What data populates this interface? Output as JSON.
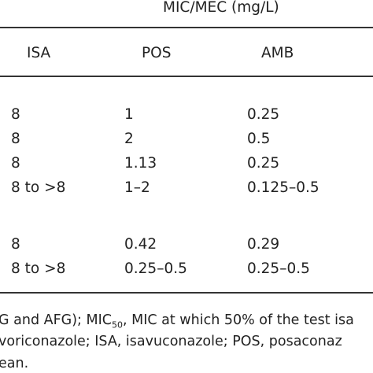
{
  "table": {
    "spanning_header": "MIC/MEC (mg/L)",
    "columns": [
      "ISA",
      "POS",
      "AMB"
    ],
    "rows": [
      [
        "8",
        "1",
        "0.25"
      ],
      [
        "8",
        "2",
        "0.5"
      ],
      [
        "8",
        "1.13",
        "0.25"
      ],
      [
        "8 to >8",
        "1–2",
        "0.125–0.5"
      ],
      [
        "8",
        "0.42",
        "0.29"
      ],
      [
        "8 to >8",
        "0.25–0.5",
        "0.25–0.5"
      ]
    ]
  },
  "footnotes": {
    "line1_a": "G and AFG); MIC",
    "line1_sub": "50",
    "line1_b": ", MIC at which 50% of the test isa",
    "line2": "voriconazole; ISA, isavuconazole; POS, posaconaz",
    "line3": "ean."
  }
}
